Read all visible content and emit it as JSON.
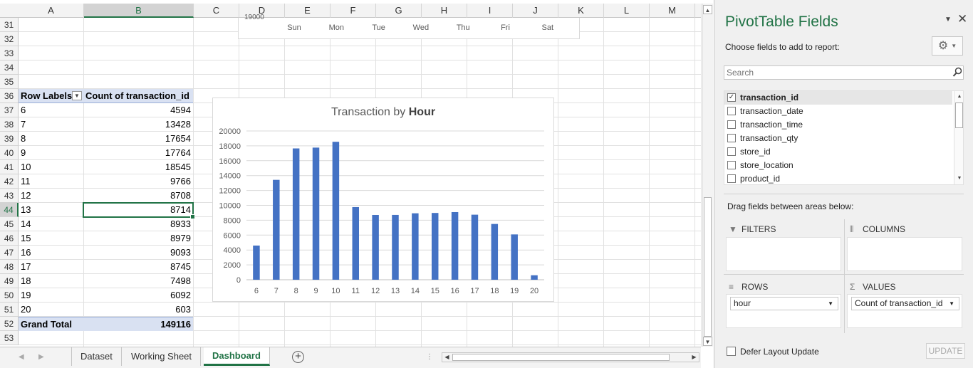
{
  "columns": [
    "A",
    "B",
    "C",
    "D",
    "E",
    "F",
    "G",
    "H",
    "I",
    "J",
    "K",
    "L",
    "M"
  ],
  "selected_column": "B",
  "rows": [
    31,
    32,
    33,
    34,
    35,
    36,
    37,
    38,
    39,
    40,
    41,
    42,
    43,
    44,
    45,
    46,
    47,
    48,
    49,
    50,
    51,
    52,
    53
  ],
  "selected_row": 44,
  "top_chart": {
    "cut_label": "19000",
    "days": [
      "Sun",
      "Mon",
      "Tue",
      "Wed",
      "Thu",
      "Fri",
      "Sat"
    ]
  },
  "pivot": {
    "header_row_labels": "Row Labels",
    "header_values": "Count of transaction_id",
    "filter_icon": "filter-dropdown-icon",
    "rows": [
      {
        "label": "6",
        "value": "4594"
      },
      {
        "label": "7",
        "value": "13428"
      },
      {
        "label": "8",
        "value": "17654"
      },
      {
        "label": "9",
        "value": "17764"
      },
      {
        "label": "10",
        "value": "18545"
      },
      {
        "label": "11",
        "value": "9766"
      },
      {
        "label": "12",
        "value": "8708"
      },
      {
        "label": "13",
        "value": "8714"
      },
      {
        "label": "14",
        "value": "8933"
      },
      {
        "label": "15",
        "value": "8979"
      },
      {
        "label": "16",
        "value": "9093"
      },
      {
        "label": "17",
        "value": "8745"
      },
      {
        "label": "18",
        "value": "7498"
      },
      {
        "label": "19",
        "value": "6092"
      },
      {
        "label": "20",
        "value": "603"
      }
    ],
    "total_label": "Grand Total",
    "total_value": "149116"
  },
  "chart_data": {
    "type": "bar",
    "title_prefix": "Transaction by ",
    "title_bold": "Hour",
    "categories": [
      "6",
      "7",
      "8",
      "9",
      "10",
      "11",
      "12",
      "13",
      "14",
      "15",
      "16",
      "17",
      "18",
      "19",
      "20"
    ],
    "values": [
      4594,
      13428,
      17654,
      17764,
      18545,
      9766,
      8708,
      8714,
      8933,
      8979,
      9093,
      8745,
      7498,
      6092,
      603
    ],
    "ylim": [
      0,
      20000
    ],
    "yticks": [
      "0",
      "2000",
      "4000",
      "6000",
      "8000",
      "10000",
      "12000",
      "14000",
      "16000",
      "18000",
      "20000"
    ],
    "xlabel": "",
    "ylabel": "",
    "grid": true,
    "legend": "none",
    "bar_color": "#4472c4"
  },
  "tabs": {
    "items": [
      "Dataset",
      "Working Sheet",
      "Dashboard"
    ],
    "active": "Dashboard"
  },
  "pane": {
    "title": "PivotTable Fields",
    "choose_label": "Choose fields to add to report:",
    "search_placeholder": "Search",
    "fields": [
      {
        "name": "transaction_id",
        "checked": true
      },
      {
        "name": "transaction_date",
        "checked": false
      },
      {
        "name": "transaction_time",
        "checked": false
      },
      {
        "name": "transaction_qty",
        "checked": false
      },
      {
        "name": "store_id",
        "checked": false
      },
      {
        "name": "store_location",
        "checked": false
      },
      {
        "name": "product_id",
        "checked": false
      }
    ],
    "drag_label": "Drag fields between areas below:",
    "filters_label": "FILTERS",
    "columns_label": "COLUMNS",
    "rows_label": "ROWS",
    "values_label": "VALUES",
    "rows_field": "hour",
    "values_field": "Count of transaction_id",
    "defer_label": "Defer Layout Update",
    "update_label": "UPDATE",
    "accent": "#217346"
  }
}
